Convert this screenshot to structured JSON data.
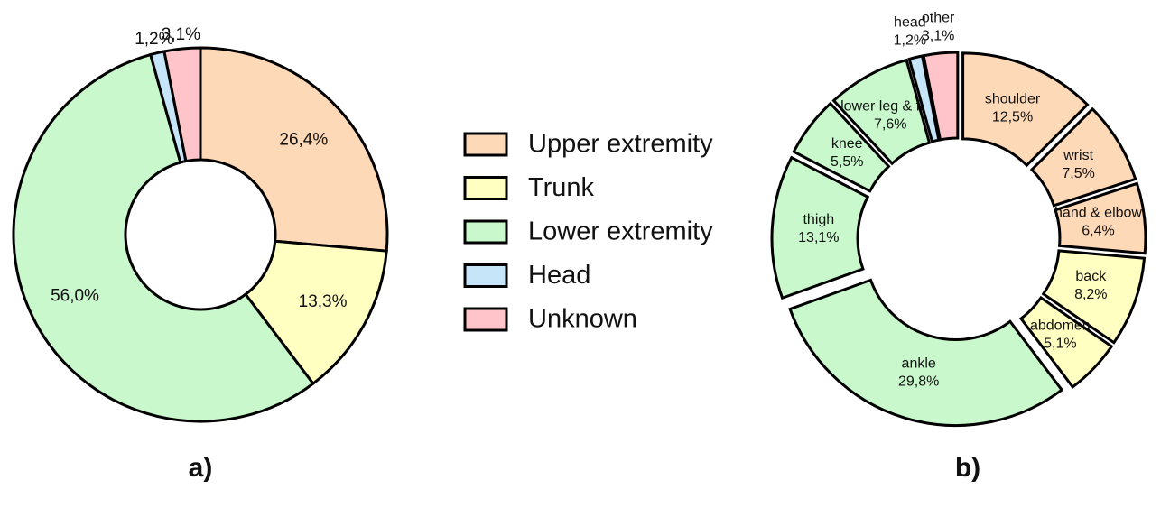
{
  "chart_data": [
    {
      "type": "donut",
      "subtitle": "a)",
      "categories": [
        "Upper extremity",
        "Trunk",
        "Lower extremity",
        "Head",
        "Unknown"
      ],
      "values": [
        26.4,
        13.3,
        56.0,
        1.2,
        3.1
      ],
      "value_labels": [
        "26,4%",
        "13,3%",
        "56,0%",
        "1,2%",
        "3,1%"
      ],
      "colors": [
        "#fdd9b8",
        "#ffffc2",
        "#c8f8cc",
        "#c6e5f8",
        "#ffc4c9"
      ],
      "legend": "right"
    },
    {
      "type": "exploded-donut",
      "subtitle": "b)",
      "categories": [
        "shoulder",
        "wrist",
        "hand & elbow",
        "back",
        "abdomen",
        "ankle",
        "thigh",
        "knee",
        "lower leg & foot",
        "head",
        "other"
      ],
      "values": [
        12.5,
        7.5,
        6.4,
        8.2,
        5.1,
        29.8,
        13.1,
        5.5,
        7.6,
        1.2,
        3.1
      ],
      "value_labels": [
        "12,5%",
        "7,5%",
        "6,4%",
        "8,2%",
        "5,1%",
        "29,8%",
        "13,1%",
        "5,5%",
        "7,6%",
        "1,2%",
        "3,1%"
      ],
      "colors": [
        "#fdd9b8",
        "#fdd9b8",
        "#fdd9b8",
        "#ffffc2",
        "#ffffc2",
        "#c8f8cc",
        "#c8f8cc",
        "#c8f8cc",
        "#c8f8cc",
        "#c6e5f8",
        "#ffc4c9"
      ]
    }
  ]
}
